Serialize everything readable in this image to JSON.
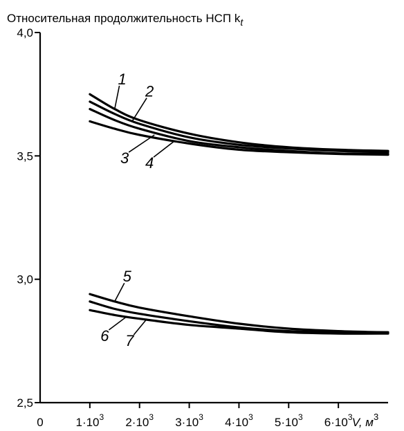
{
  "chart_data": {
    "type": "line",
    "title": "Относительная продолжительность НСП k",
    "title_subscript": "t",
    "xlabel": "V, м",
    "xlabel_superscript": "3",
    "x_ticks": [
      {
        "value": 0,
        "base": "0",
        "sup": ""
      },
      {
        "value": 1000,
        "base": "1·10",
        "sup": "3"
      },
      {
        "value": 2000,
        "base": "2·10",
        "sup": "3"
      },
      {
        "value": 3000,
        "base": "3·10",
        "sup": "3"
      },
      {
        "value": 4000,
        "base": "4·10",
        "sup": "3"
      },
      {
        "value": 5000,
        "base": "5·10",
        "sup": "3"
      },
      {
        "value": 6000,
        "base": "6·10",
        "sup": "3"
      }
    ],
    "y_ticks": [
      {
        "value": 2.5,
        "label": "2,5"
      },
      {
        "value": 3.0,
        "label": "3,0"
      },
      {
        "value": 3.5,
        "label": "3,5"
      },
      {
        "value": 4.0,
        "label": "4,0"
      }
    ],
    "xlim": [
      0,
      7000
    ],
    "ylim": [
      2.5,
      4.0
    ],
    "grid": false,
    "legend": "inline labels",
    "series": [
      {
        "label": "1",
        "x": [
          1000,
          1500,
          2000,
          3000,
          4000,
          5000,
          6000,
          7000
        ],
        "y": [
          3.75,
          3.69,
          3.645,
          3.59,
          3.555,
          3.535,
          3.525,
          3.52
        ],
        "label_x": 1650,
        "label_y": 3.79,
        "leader_x": 1500,
        "leader_y": 3.69
      },
      {
        "label": "2",
        "x": [
          1000,
          1500,
          2000,
          3000,
          4000,
          5000,
          6000,
          7000
        ],
        "y": [
          3.72,
          3.67,
          3.63,
          3.575,
          3.545,
          3.53,
          3.52,
          3.515
        ],
        "label_x": 2200,
        "label_y": 3.74,
        "leader_x": 1850,
        "leader_y": 3.64
      },
      {
        "label": "3",
        "x": [
          1000,
          1500,
          2000,
          3000,
          4000,
          5000,
          6000,
          7000
        ],
        "y": [
          3.69,
          3.645,
          3.61,
          3.56,
          3.535,
          3.52,
          3.51,
          3.508
        ],
        "label_x": 1700,
        "label_y": 3.47,
        "leader_x": 2300,
        "leader_y": 3.585
      },
      {
        "label": "4",
        "x": [
          1000,
          1500,
          2000,
          3000,
          4000,
          5000,
          6000,
          7000
        ],
        "y": [
          3.64,
          3.61,
          3.585,
          3.55,
          3.525,
          3.515,
          3.508,
          3.505
        ],
        "label_x": 2200,
        "label_y": 3.45,
        "leader_x": 2700,
        "leader_y": 3.56
      }
    ],
    "series_lower": [
      {
        "label": "5",
        "x": [
          1000,
          1500,
          2000,
          3000,
          4000,
          5000,
          6000,
          7000
        ],
        "y": [
          2.94,
          2.91,
          2.885,
          2.85,
          2.82,
          2.8,
          2.79,
          2.785
        ],
        "label_x": 1750,
        "label_y": 2.99,
        "leader_x": 1500,
        "leader_y": 2.91
      },
      {
        "label": "6",
        "x": [
          1000,
          1500,
          2000,
          3000,
          4000,
          5000,
          6000,
          7000
        ],
        "y": [
          2.91,
          2.88,
          2.86,
          2.83,
          2.805,
          2.79,
          2.785,
          2.785
        ],
        "label_x": 1300,
        "label_y": 2.75,
        "leader_x": 1750,
        "leader_y": 2.85
      },
      {
        "label": "7",
        "x": [
          1000,
          1500,
          2000,
          3000,
          4000,
          5000,
          6000,
          7000
        ],
        "y": [
          2.875,
          2.855,
          2.84,
          2.815,
          2.8,
          2.785,
          2.78,
          2.78
        ],
        "label_x": 1800,
        "label_y": 2.73,
        "leader_x": 2150,
        "leader_y": 2.84
      }
    ]
  }
}
